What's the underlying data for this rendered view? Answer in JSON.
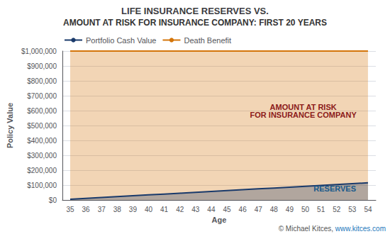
{
  "chart_data": {
    "type": "area",
    "title": "LIFE INSURANCE RESERVES VS.",
    "subtitle": "AMOUNT AT RISK FOR INSURANCE COMPANY: FIRST 20 YEARS",
    "x_label": "Age",
    "y_label": "Policy Value",
    "categories": [
      "35",
      "36",
      "37",
      "38",
      "39",
      "40",
      "41",
      "42",
      "43",
      "44",
      "45",
      "46",
      "47",
      "48",
      "49",
      "50",
      "51",
      "52",
      "53",
      "54"
    ],
    "series": [
      {
        "name": "Portfolio Cash Value",
        "color": "#1a3a6b",
        "values": [
          5000,
          10789.473684210527,
          16578.947368421053,
          22368.42105263158,
          28157.894736842107,
          33947.36842105263,
          39736.84210526316,
          45526.31578947369,
          51315.78947368421,
          57105.26315789474,
          62894.73684210526,
          68684.21052631579,
          74473.68421052632,
          80263.15789473684,
          86052.63157894737,
          91842.1052631579,
          97631.57894736843,
          103421.05263157895,
          109210.52631578948,
          115000
        ]
      },
      {
        "name": "Death Benefit",
        "color": "#d4750a",
        "values": [
          1000000,
          1000000,
          1000000,
          1000000,
          1000000,
          1000000,
          1000000,
          1000000,
          1000000,
          1000000,
          1000000,
          1000000,
          1000000,
          1000000,
          1000000,
          1000000,
          1000000,
          1000000,
          1000000,
          1000000
        ]
      }
    ],
    "ylim": [
      0,
      1000000
    ],
    "yticks": [
      {
        "value": 0,
        "label": "$0"
      },
      {
        "value": 100000,
        "label": "$100,000"
      },
      {
        "value": 200000,
        "label": "$200,000"
      },
      {
        "value": 300000,
        "label": "$300,000"
      },
      {
        "value": 400000,
        "label": "$400,000"
      },
      {
        "value": 500000,
        "label": "$500,000"
      },
      {
        "value": 600000,
        "label": "$600,000"
      },
      {
        "value": 700000,
        "label": "$700,000"
      },
      {
        "value": 800000,
        "label": "$800,000"
      },
      {
        "value": 900000,
        "label": "$900,000"
      },
      {
        "value": 1000000,
        "label": "$1,000,000"
      }
    ],
    "grid": true,
    "legend": "upper left",
    "annotations": [
      "AMOUNT AT RISK\nFOR INSURANCE COMPANY",
      "RESERVES",
      "© Michael Kitces, ",
      "www.kitces.com"
    ]
  }
}
